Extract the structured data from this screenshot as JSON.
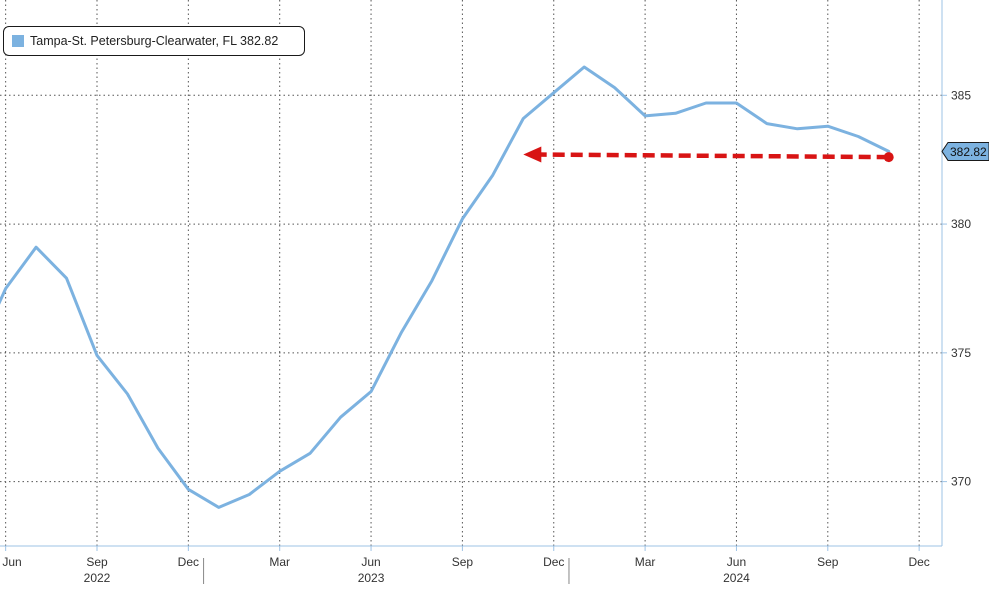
{
  "legend": {
    "label": "Tampa-St. Petersburg-Clearwater, FL 382.82"
  },
  "colors": {
    "series": "#7cb2e0",
    "arrow": "#d81414",
    "grid": "#555555",
    "axis": "#9ec3e6"
  },
  "current_value_badge": "382.82",
  "chart_data": {
    "type": "line",
    "title": "",
    "xlabel": "",
    "ylabel": "",
    "ylim": [
      367.5,
      388.7
    ],
    "y_ticks": [
      370,
      375,
      380,
      385
    ],
    "y_tick_labels": [
      "370",
      "375",
      "380",
      "385"
    ],
    "x_tick_labels": [
      "Jun",
      "Sep",
      "Dec",
      "Mar",
      "Jun",
      "Sep",
      "Dec",
      "Mar",
      "Jun",
      "Sep",
      "Dec"
    ],
    "x_tick_months": [
      "2022-06",
      "2022-09",
      "2022-12",
      "2023-03",
      "2023-06",
      "2023-09",
      "2023-12",
      "2024-03",
      "2024-06",
      "2024-09",
      "2024-12"
    ],
    "year_labels": [
      {
        "label": "2022",
        "month": "2022-09"
      },
      {
        "label": "2023",
        "month": "2023-06"
      },
      {
        "label": "2024",
        "month": "2024-06"
      }
    ],
    "grid": true,
    "legend_position": "top-left",
    "series": [
      {
        "name": "Tampa-St. Petersburg-Clearwater, FL",
        "x": [
          "2022-05-15",
          "2022-06",
          "2022-07",
          "2022-08",
          "2022-09",
          "2022-10",
          "2022-11",
          "2022-12",
          "2023-01",
          "2023-02",
          "2023-03",
          "2023-04",
          "2023-05",
          "2023-06",
          "2023-07",
          "2023-08",
          "2023-09",
          "2023-10",
          "2023-11",
          "2023-12",
          "2024-01",
          "2024-02",
          "2024-03",
          "2024-04",
          "2024-05",
          "2024-06",
          "2024-07",
          "2024-08",
          "2024-09",
          "2024-10",
          "2024-11"
        ],
        "values": [
          376.1,
          377.5,
          379.1,
          377.9,
          374.9,
          373.4,
          371.3,
          369.7,
          369.0,
          369.5,
          370.4,
          371.1,
          372.5,
          373.5,
          375.8,
          377.8,
          380.2,
          381.9,
          384.1,
          385.1,
          386.1,
          385.3,
          384.2,
          384.3,
          384.7,
          384.7,
          383.9,
          383.7,
          383.8,
          383.4,
          382.82
        ]
      }
    ],
    "annotations": [
      {
        "type": "arrow",
        "from": {
          "x": "2024-11",
          "y": 382.6
        },
        "to": {
          "x": "2023-11",
          "y": 382.7
        }
      }
    ]
  }
}
